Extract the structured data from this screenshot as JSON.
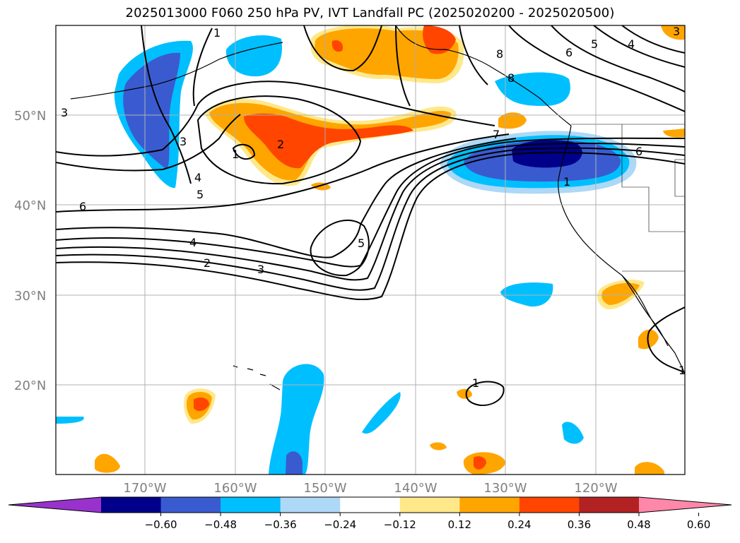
{
  "title": "2025013000 F060 250 hPa PV, IVT Landfall PC (2025020200 - 2025020500)",
  "map": {
    "lat_labels": [
      "50°N",
      "40°N",
      "30°N",
      "20°N"
    ],
    "lon_labels": [
      "170°W",
      "160°W",
      "150°W",
      "140°W",
      "130°W",
      "120°W"
    ],
    "contour_labels": [
      "1",
      "1",
      "1",
      "1",
      "1",
      "2",
      "2",
      "3",
      "3",
      "3",
      "3",
      "4",
      "4",
      "4",
      "5",
      "5",
      "5",
      "6",
      "6",
      "6",
      "7",
      "8",
      "8"
    ]
  },
  "colorbar": {
    "ticks": [
      "−0.60",
      "−0.48",
      "−0.36",
      "−0.24",
      "−0.12",
      "0.12",
      "0.24",
      "0.36",
      "0.48",
      "0.60"
    ],
    "colors": [
      "#9932cc",
      "#00008b",
      "#3a5bd0",
      "#00bfff",
      "#add8f6",
      "#ffffff",
      "#ffe88a",
      "#ffa500",
      "#ff4500",
      "#b22222",
      "#ff88aa"
    ]
  },
  "colors": {
    "deep_neg": "#00008b",
    "neg_strong": "#3a5bd0",
    "neg_mid": "#00bfff",
    "neg_light": "#add8f6",
    "pos_light": "#ffe88a",
    "pos_mid": "#ffa500",
    "pos_strong": "#ff4500",
    "pos_deep": "#b22222",
    "grid": "#b0b0b0"
  }
}
